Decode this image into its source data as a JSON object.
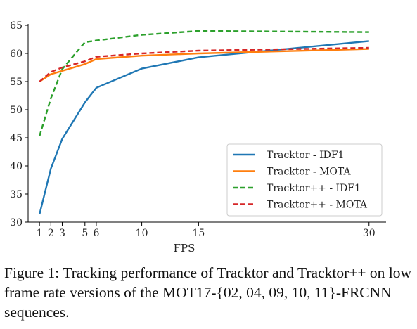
{
  "chart_data": {
    "type": "line",
    "xlabel": "FPS",
    "ylabel": "",
    "xlim": [
      0,
      31.5
    ],
    "ylim": [
      30,
      65
    ],
    "xticks": [
      1,
      2,
      3,
      5,
      6,
      10,
      15,
      30
    ],
    "yticks": [
      30,
      35,
      40,
      45,
      50,
      55,
      60,
      65
    ],
    "x": [
      1,
      2,
      3,
      5,
      6,
      10,
      15,
      30
    ],
    "grid": false,
    "legend_position": "lower-right",
    "series": [
      {
        "name": "Tracktor - IDF1",
        "color": "#1f77b4",
        "dash": "solid",
        "values": [
          31.4,
          39.5,
          44.8,
          51.3,
          53.9,
          57.3,
          59.3,
          62.2
        ]
      },
      {
        "name": "Tracktor - MOTA",
        "color": "#ff7f0e",
        "dash": "solid",
        "values": [
          55.0,
          56.3,
          56.9,
          58.1,
          59.0,
          59.6,
          60.0,
          60.8
        ]
      },
      {
        "name": "Tracktor++ - IDF1",
        "color": "#2ca02c",
        "dash": "dashed",
        "values": [
          45.3,
          52.0,
          57.2,
          62.0,
          62.3,
          63.3,
          64.0,
          63.8
        ]
      },
      {
        "name": "Tracktor++ - MOTA",
        "color": "#d62728",
        "dash": "dashed",
        "values": [
          55.0,
          56.7,
          57.5,
          58.6,
          59.4,
          60.0,
          60.5,
          61.0
        ]
      }
    ]
  },
  "caption": "Figure 1: Tracking performance of Tracktor and Tracktor++ on low frame rate versions of the MOT17-{02, 04, 09, 10, 11}-FRCNN sequences."
}
